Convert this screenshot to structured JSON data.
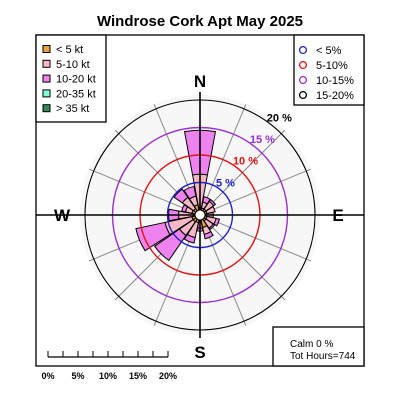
{
  "chart_data": {
    "type": "windrose",
    "title": "Windrose  Cork Apt May 2025",
    "directions": [
      "N",
      "NNE",
      "NE",
      "ENE",
      "E",
      "ESE",
      "SE",
      "SSE",
      "S",
      "SSW",
      "SW",
      "WSW",
      "W",
      "WNW",
      "NW",
      "NNW"
    ],
    "speed_bins": [
      {
        "label": "< 5  kt",
        "color": "#e8a33c"
      },
      {
        "label": "5-10 kt",
        "color": "#f7b8c6"
      },
      {
        "label": "10-20 kt",
        "color": "#ee82ee"
      },
      {
        "label": "20-35 kt",
        "color": "#7fffd4"
      },
      {
        "label": "> 35 kt",
        "color": "#2e8b57"
      }
    ],
    "freq_pct": [
      [
        0.5,
        6.0,
        8.0,
        0,
        0
      ],
      [
        0.4,
        1.1,
        1.0,
        0,
        0
      ],
      [
        0.4,
        1.7,
        0.4,
        0,
        0
      ],
      [
        0.4,
        1.5,
        0.0,
        0,
        0
      ],
      [
        0.3,
        1.2,
        0.0,
        0,
        0
      ],
      [
        0.4,
        1.7,
        0.6,
        0,
        0
      ],
      [
        0.4,
        1.6,
        0.3,
        0,
        0
      ],
      [
        1.4,
        1.3,
        0.8,
        0,
        0
      ],
      [
        0.5,
        1.0,
        0.5,
        0,
        0
      ],
      [
        0.5,
        2.8,
        1.0,
        0,
        0
      ],
      [
        0.6,
        3.0,
        5.5,
        0,
        0
      ],
      [
        0.6,
        5.0,
        5.4,
        0,
        0
      ],
      [
        0.3,
        2.7,
        1.8,
        0,
        0
      ],
      [
        0.6,
        1.2,
        0.7,
        0,
        0
      ],
      [
        0.5,
        2.5,
        1.8,
        0,
        0
      ],
      [
        1.0,
        1.6,
        1.8,
        0,
        0
      ]
    ],
    "rings": [
      {
        "label": "5 %",
        "value": 5,
        "color": "#2222cc"
      },
      {
        "label": "10 %",
        "value": 10,
        "color": "#e01515"
      },
      {
        "label": "15 %",
        "value": 15,
        "color": "#9a2ed0"
      },
      {
        "label": "20 %",
        "value": 20,
        "color": "#000000"
      }
    ],
    "ring_legend": [
      "< 5%",
      "5-10%",
      "10-15%",
      "15-20%"
    ],
    "compass": {
      "n": "N",
      "e": "E",
      "s": "S",
      "w": "W"
    },
    "calm_text": "Calm 0 %",
    "hours_text": "Tot Hours=744",
    "scale_labels": [
      "0%",
      "5%",
      "10%",
      "15%",
      "20%"
    ]
  }
}
